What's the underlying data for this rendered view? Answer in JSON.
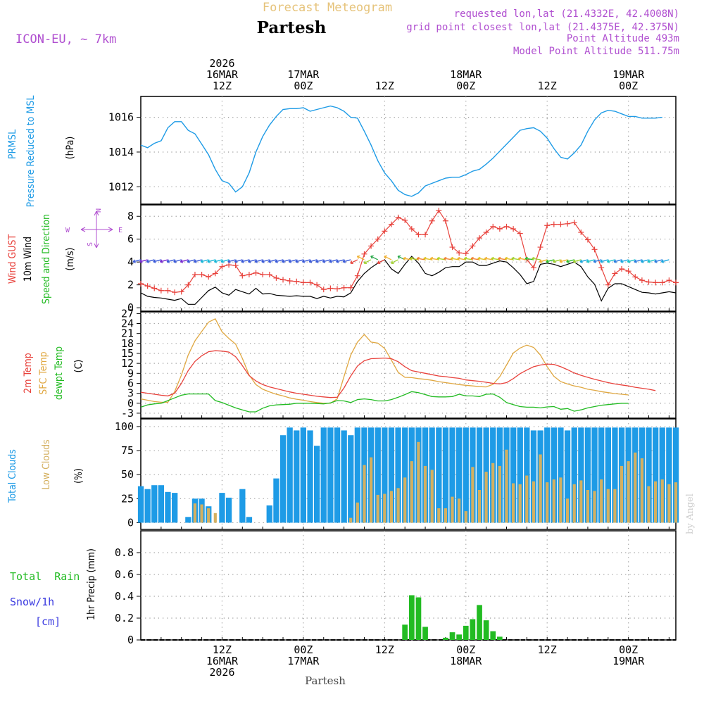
{
  "header": {
    "title": "Forecast Meteogram",
    "location": "Partesh",
    "model": "ICON-EU, ~ 7km",
    "requested": "requested lon,lat (21.4332E, 42.4008N)",
    "gridpoint": "grid point closest lon,lat (21.4375E, 42.375N)",
    "point_alt": "Point Altitude 493m",
    "model_alt": "Model Point Altitude 511.75m",
    "footer_location": "Partesh",
    "credit": "by Angel"
  },
  "colors": {
    "pressure": "#1e9be6",
    "gust": "#e8423c",
    "wind10m": "#000000",
    "temp2m": "#e8423c",
    "sfc": "#e0a842",
    "dewpt": "#22bb22",
    "totalcloud": "#1e9be6",
    "lowcloud": "#d4b060",
    "rain": "#22bb22",
    "snow": "#3a3ae0",
    "title": "#e6c37a",
    "purple": "#b04fd0",
    "grid": "#999999"
  },
  "time_axis": {
    "top_labels": [
      {
        "t": 12,
        "lines": [
          "2026",
          "16MAR",
          "12Z"
        ]
      },
      {
        "t": 24,
        "lines": [
          "17MAR",
          "00Z"
        ]
      },
      {
        "t": 36,
        "lines": [
          "12Z"
        ]
      },
      {
        "t": 48,
        "lines": [
          "18MAR",
          "00Z"
        ]
      },
      {
        "t": 60,
        "lines": [
          "12Z"
        ]
      },
      {
        "t": 72,
        "lines": [
          "19MAR",
          "00Z"
        ]
      }
    ],
    "bottom_labels": [
      {
        "t": 12,
        "lines": [
          "12Z",
          "16MAR",
          "2026"
        ]
      },
      {
        "t": 24,
        "lines": [
          "00Z",
          "17MAR"
        ]
      },
      {
        "t": 36,
        "lines": [
          "12Z"
        ]
      },
      {
        "t": 48,
        "lines": [
          "00Z",
          "18MAR"
        ]
      },
      {
        "t": 60,
        "lines": [
          "12Z"
        ]
      },
      {
        "t": 72,
        "lines": [
          "00Z",
          "19MAR"
        ]
      }
    ],
    "gridlines": [
      12,
      24,
      36,
      48,
      60,
      72
    ]
  },
  "chart_data": [
    {
      "type": "line",
      "id": "pressure",
      "title": "PRMSL Pressure Reduced to MSL",
      "ylabel_lines": [
        "PRMSL",
        "Pressure Reduced to MSL",
        "(hPa)"
      ],
      "ylim": [
        1011.0,
        1017.2
      ],
      "yticks": [
        1012,
        1014,
        1016
      ],
      "x_start": 0,
      "x_step": 1,
      "series": [
        {
          "name": "PRMSL",
          "values": [
            1014.4,
            1014.25,
            1014.5,
            1014.65,
            1015.4,
            1015.75,
            1015.75,
            1015.25,
            1015.05,
            1014.45,
            1013.85,
            1013.0,
            1012.35,
            1012.2,
            1011.7,
            1012.0,
            1012.8,
            1014.0,
            1014.9,
            1015.55,
            1016.05,
            1016.45,
            1016.5,
            1016.5,
            1016.55,
            1016.35,
            1016.45,
            1016.55,
            1016.65,
            1016.55,
            1016.35,
            1016.0,
            1015.95,
            1015.2,
            1014.4,
            1013.5,
            1012.8,
            1012.35,
            1011.8,
            1011.55,
            1011.45,
            1011.65,
            1012.05,
            1012.2,
            1012.35,
            1012.5,
            1012.55,
            1012.55,
            1012.7,
            1012.9,
            1013.0,
            1013.3,
            1013.65,
            1014.05,
            1014.45,
            1014.85,
            1015.25,
            1015.35,
            1015.4,
            1015.2,
            1014.8,
            1014.2,
            1013.7,
            1013.6,
            1013.95,
            1014.4,
            1015.2,
            1015.85,
            1016.25,
            1016.4,
            1016.35,
            1016.2,
            1016.05,
            1016.05,
            1015.95,
            1015.95,
            1015.95,
            1016.0
          ]
        }
      ]
    },
    {
      "type": "line",
      "id": "wind",
      "title": "Wind GUST, 10m Wind Speed and Direction",
      "ylabel_lines": [
        "Wind GUST",
        "10m Wind",
        "Speed and Direction",
        "(m/s)"
      ],
      "compass": {
        "n": "N",
        "e": "E",
        "s": "S",
        "w": "W"
      },
      "ylim": [
        -0.3,
        9.0
      ],
      "yticks": [
        0,
        2,
        4,
        6,
        8
      ],
      "x_start": 0,
      "x_step": 1,
      "series": [
        {
          "name": "Wind GUST",
          "values": [
            2.1,
            1.9,
            1.7,
            1.5,
            1.5,
            1.35,
            1.4,
            2.0,
            2.9,
            2.9,
            2.7,
            3.0,
            3.6,
            3.75,
            3.7,
            2.8,
            2.9,
            3.05,
            2.9,
            2.9,
            2.6,
            2.45,
            2.35,
            2.3,
            2.2,
            2.2,
            2.0,
            1.6,
            1.7,
            1.65,
            1.75,
            1.75,
            2.8,
            4.7,
            5.4,
            6.0,
            6.7,
            7.3,
            7.9,
            7.65,
            6.9,
            6.4,
            6.4,
            7.6,
            8.5,
            7.6,
            5.3,
            4.8,
            4.75,
            5.4,
            6.1,
            6.6,
            7.1,
            6.9,
            7.1,
            6.9,
            6.5,
            4.2,
            3.5,
            5.3,
            7.2,
            7.3,
            7.3,
            7.35,
            7.45,
            6.6,
            5.95,
            5.1,
            3.5,
            2.0,
            3.0,
            3.4,
            3.2,
            2.7,
            2.4,
            2.25,
            2.2,
            2.2,
            2.4,
            2.2
          ]
        },
        {
          "name": "10m Wind",
          "values": [
            1.3,
            1.0,
            0.9,
            0.85,
            0.75,
            0.65,
            0.8,
            0.3,
            0.3,
            0.9,
            1.5,
            1.8,
            1.3,
            1.1,
            1.6,
            1.4,
            1.2,
            1.7,
            1.2,
            1.25,
            1.1,
            1.05,
            1.0,
            1.05,
            1.0,
            1.0,
            0.8,
            1.0,
            0.85,
            1.0,
            0.95,
            1.3,
            2.3,
            3.0,
            3.5,
            3.9,
            4.2,
            3.4,
            3.0,
            3.8,
            4.5,
            3.9,
            3.0,
            2.8,
            3.1,
            3.5,
            3.6,
            3.6,
            4.0,
            4.0,
            3.7,
            3.7,
            3.9,
            4.1,
            4.0,
            3.5,
            2.9,
            2.1,
            2.3,
            3.8,
            3.9,
            3.8,
            3.6,
            3.8,
            4.0,
            3.6,
            2.7,
            2.05,
            0.6,
            1.7,
            2.1,
            2.1,
            1.85,
            1.6,
            1.35,
            1.3,
            1.2,
            1.3,
            1.4,
            1.3
          ]
        }
      ]
    },
    {
      "type": "line",
      "id": "temperature",
      "title": "2m Temp, SFC Temp, dewpt Temp",
      "ylabel_lines": [
        "2m Temp",
        "SFC Temp",
        "dewpt Temp",
        "(C)"
      ],
      "ylim": [
        -4.5,
        27.5
      ],
      "yticks": [
        -3,
        0,
        3,
        6,
        9,
        12,
        15,
        18,
        21,
        24,
        27
      ],
      "x_start": 0,
      "x_step": 1,
      "series": [
        {
          "name": "2m Temp",
          "values": [
            3.3,
            3.0,
            2.7,
            2.4,
            2.2,
            3.0,
            6.0,
            9.8,
            12.6,
            14.3,
            15.5,
            15.8,
            15.7,
            15.4,
            14.0,
            11.3,
            8.3,
            6.7,
            5.6,
            4.9,
            4.4,
            3.9,
            3.4,
            3.0,
            2.7,
            2.4,
            2.1,
            1.9,
            1.7,
            1.8,
            4.6,
            8.2,
            11.2,
            12.8,
            13.4,
            13.5,
            13.6,
            13.4,
            12.5,
            11.0,
            9.8,
            9.4,
            9.0,
            8.6,
            8.2,
            8.0,
            7.7,
            7.5,
            7.0,
            6.8,
            6.6,
            6.3,
            6.0,
            5.8,
            6.2,
            7.4,
            8.9,
            10.0,
            11.0,
            11.5,
            11.8,
            11.7,
            11.0,
            10.1,
            9.1,
            8.4,
            7.8,
            7.2,
            6.7,
            6.2,
            5.8,
            5.5,
            5.2,
            4.8,
            4.5,
            4.2,
            3.8
          ]
        },
        {
          "name": "SFC Temp",
          "values": [
            1.3,
            0.9,
            0.5,
            0.3,
            0.3,
            3.5,
            8.5,
            14.5,
            18.8,
            21.6,
            24.4,
            25.4,
            21.5,
            19.5,
            17.8,
            13.5,
            8.5,
            5.6,
            4.2,
            3.4,
            2.7,
            2.2,
            1.6,
            1.2,
            0.9,
            0.5,
            0.2,
            0.0,
            0.0,
            1.3,
            8.0,
            14.5,
            18.4,
            20.7,
            18.4,
            18.1,
            16.5,
            13.0,
            9.3,
            7.8,
            7.7,
            7.4,
            7.2,
            6.9,
            6.5,
            6.2,
            5.9,
            5.6,
            5.4,
            5.2,
            5.0,
            4.9,
            5.7,
            8.0,
            11.5,
            15.1,
            16.6,
            17.5,
            16.8,
            14.5,
            11.0,
            8.1,
            6.5,
            5.8,
            5.2,
            4.8,
            4.2,
            3.9,
            3.5,
            3.2,
            2.9,
            2.7,
            2.5
          ]
        },
        {
          "name": "dewpt Temp",
          "values": [
            -1.2,
            -0.5,
            -0.2,
            0.0,
            0.8,
            1.6,
            2.4,
            2.8,
            2.8,
            2.8,
            2.8,
            0.8,
            0.2,
            -0.6,
            -1.4,
            -2.0,
            -2.6,
            -2.6,
            -1.5,
            -0.8,
            -0.5,
            -0.4,
            -0.3,
            0.0,
            0.0,
            0.0,
            -0.1,
            -0.2,
            0.1,
            0.8,
            0.7,
            0.2,
            1.1,
            1.3,
            1.1,
            0.7,
            0.7,
            1.1,
            1.8,
            2.6,
            3.5,
            3.2,
            2.6,
            2.0,
            1.9,
            1.9,
            2.0,
            2.7,
            2.2,
            2.2,
            2.0,
            2.7,
            2.8,
            1.8,
            0.2,
            -0.4,
            -1.0,
            -1.2,
            -1.2,
            -1.4,
            -1.1,
            -1.0,
            -1.8,
            -1.6,
            -2.4,
            -2.0,
            -1.4,
            -1.0,
            -0.6,
            -0.4,
            -0.2,
            0.0,
            0.0
          ]
        }
      ]
    },
    {
      "type": "bar",
      "id": "clouds",
      "title": "Total Clouds, Low Clouds",
      "ylabel_lines": [
        "Total Clouds",
        "Low Clouds",
        "(%)"
      ],
      "ylim": [
        -7,
        108
      ],
      "yticks": [
        0,
        25,
        50,
        75,
        100
      ],
      "x_start": 0,
      "x_step": 1,
      "series": [
        {
          "name": "Total Clouds",
          "values": [
            38,
            35,
            39,
            39,
            32,
            31,
            0,
            6,
            25,
            25,
            17,
            0,
            31,
            26,
            0,
            35,
            6,
            0,
            0,
            18,
            46,
            91,
            99,
            96,
            99,
            96,
            80,
            99,
            99,
            99,
            96,
            91,
            99,
            99,
            99,
            99,
            99,
            99,
            99,
            99,
            99,
            99,
            99,
            99,
            99,
            99,
            99,
            99,
            99,
            99,
            99,
            99,
            99,
            99,
            99,
            99,
            99,
            99,
            96,
            96,
            99,
            99,
            99,
            96,
            99,
            99,
            99,
            99,
            99,
            99,
            99,
            99,
            99,
            99,
            99,
            99,
            99,
            99,
            99,
            99
          ]
        },
        {
          "name": "Low Clouds",
          "values": [
            0,
            0,
            0,
            0,
            0,
            0,
            0,
            0,
            20,
            19,
            15,
            10,
            0,
            0,
            0,
            0,
            0,
            0,
            0,
            0,
            0,
            0,
            0,
            0,
            0,
            0,
            0,
            0,
            0,
            0,
            0,
            5,
            21,
            60,
            68,
            29,
            30,
            33,
            36,
            47,
            64,
            84,
            59,
            55,
            15,
            15,
            27,
            25,
            12,
            58,
            34,
            53,
            62,
            59,
            76,
            41,
            40,
            49,
            43,
            71,
            42,
            45,
            47,
            25,
            40,
            44,
            34,
            33,
            45,
            35,
            35,
            59,
            64,
            73,
            67,
            38,
            43,
            45,
            40,
            42
          ]
        }
      ]
    },
    {
      "type": "bar",
      "id": "precip",
      "title": "1hr Precip",
      "ylabel_lines": [
        "1hr Precip (mm)"
      ],
      "legend_lines": [
        "Total  Rain",
        "Snow/1h",
        "[cm]"
      ],
      "ylim": [
        0,
        1.0
      ],
      "yticks": [
        0,
        0.2,
        0.4,
        0.6,
        0.8
      ],
      "x_start": 0,
      "x_step": 1,
      "series": [
        {
          "name": "Total Rain",
          "values": [
            0,
            0,
            0,
            0,
            0,
            0,
            0,
            0,
            0,
            0,
            0,
            0,
            0,
            0,
            0,
            0,
            0,
            0,
            0,
            0,
            0,
            0,
            0,
            0,
            0,
            0,
            0,
            0,
            0,
            0,
            0,
            0,
            0,
            0,
            0,
            0,
            0,
            0,
            0,
            0.14,
            0.41,
            0.39,
            0.12,
            0,
            0,
            0.02,
            0.07,
            0.05,
            0.13,
            0.19,
            0.32,
            0.18,
            0.08,
            0.03,
            0,
            0,
            0,
            0,
            0,
            0,
            0,
            0,
            0,
            0,
            0,
            0,
            0,
            0,
            0,
            0,
            0,
            0,
            0,
            0,
            0,
            0,
            0,
            0
          ]
        },
        {
          "name": "Snow/1h",
          "values": []
        }
      ]
    }
  ]
}
